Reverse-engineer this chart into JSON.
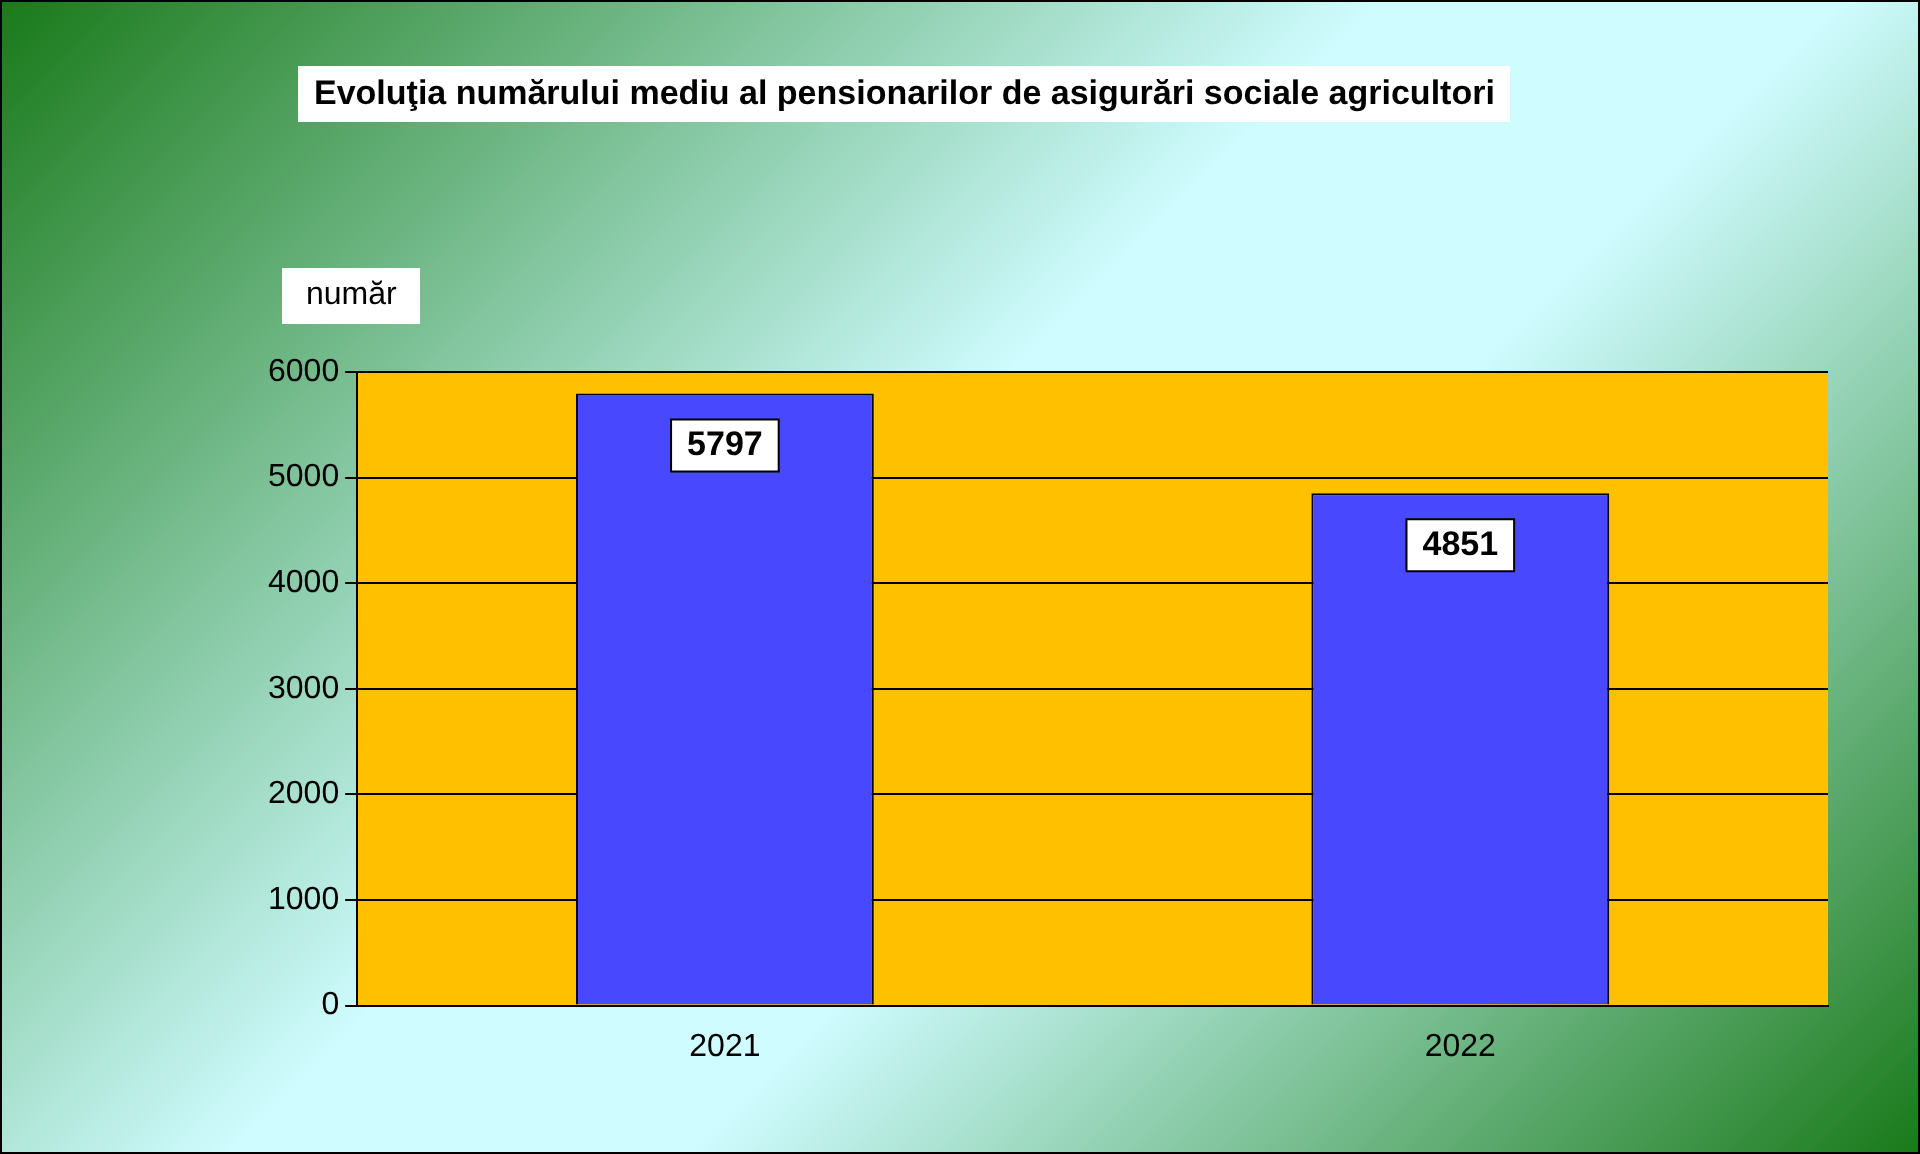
{
  "chart_data": {
    "type": "bar",
    "title": "Evoluţia numărului mediu al pensionarilor de asigurări sociale agricultori",
    "ylabel": "număr",
    "categories": [
      "2021",
      "2022"
    ],
    "values": [
      5797,
      4851
    ],
    "color": "#4848ff",
    "ylim": [
      0,
      6000
    ],
    "yticks": [
      0,
      1000,
      2000,
      3000,
      4000,
      5000,
      6000
    ],
    "grid": "y",
    "data_labels": true
  }
}
